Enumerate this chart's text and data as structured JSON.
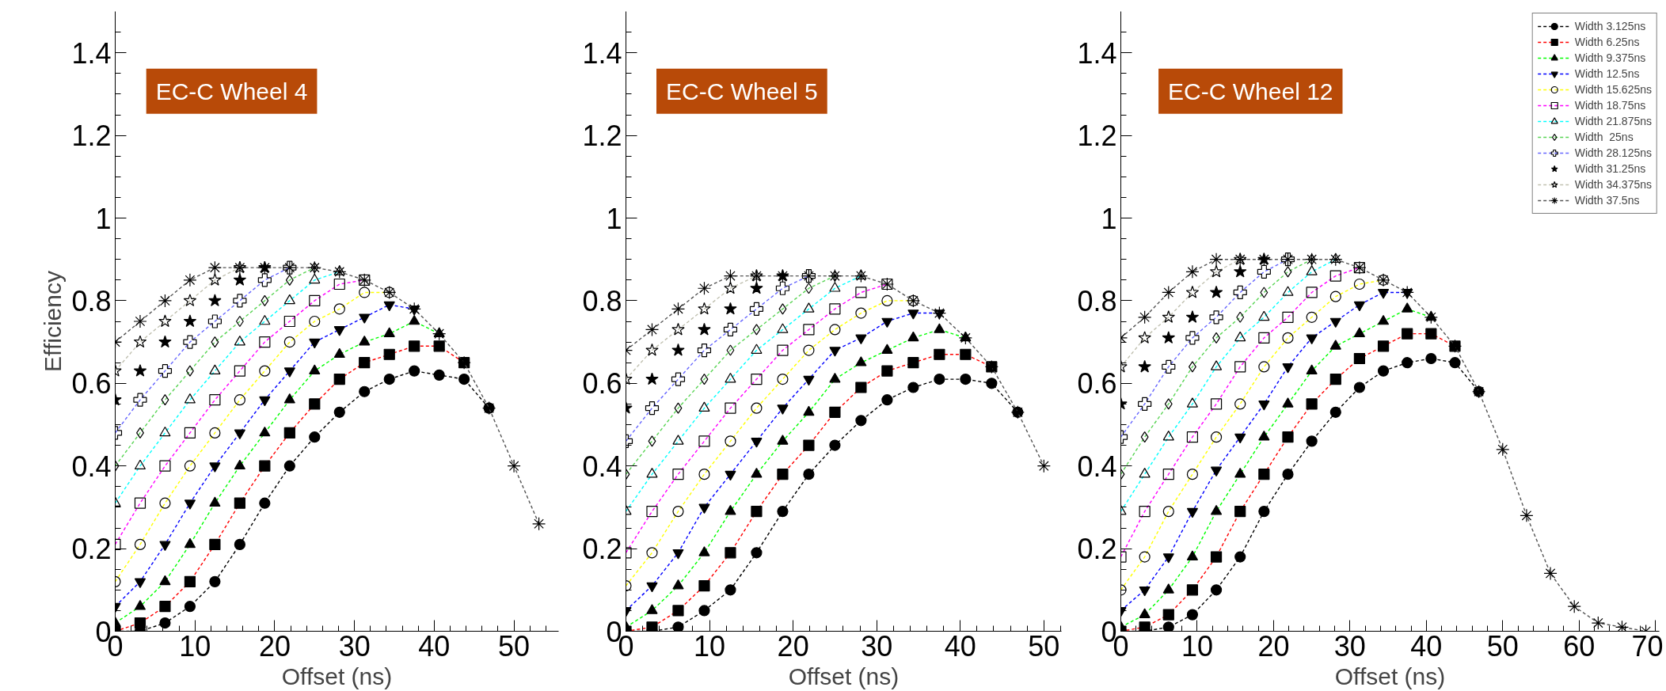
{
  "chart_data": [
    {
      "type": "line",
      "title": "EC-C Wheel 4",
      "xlabel": "Offset (ns)",
      "ylabel": "Efficiency",
      "line_style": "dashed",
      "xlim": [
        0,
        55.6
      ],
      "ylim": [
        0,
        1.5
      ],
      "xticks": [
        0,
        10,
        20,
        30,
        40,
        50
      ],
      "yticks": [
        0,
        0.2,
        0.4,
        0.6,
        0.8,
        1,
        1.2,
        1.4
      ],
      "x": [
        0,
        3.125,
        6.25,
        9.375,
        12.5,
        15.625,
        18.75,
        21.875,
        25,
        28.125,
        31.25,
        34.375,
        37.5,
        40.625,
        43.75,
        46.875,
        50,
        53.125
      ],
      "series": [
        {
          "color": "#000000",
          "marker": "circle",
          "values": [
            0,
            0,
            0.02,
            0.06,
            0.12,
            0.21,
            0.31,
            0.4,
            0.47,
            0.53,
            0.58,
            0.61,
            0.63,
            0.62,
            0.61,
            0.54,
            null,
            null
          ]
        },
        {
          "color": "#ff0000",
          "marker": "square",
          "values": [
            0,
            0.02,
            0.06,
            0.12,
            0.21,
            0.31,
            0.4,
            0.48,
            0.55,
            0.61,
            0.65,
            0.67,
            0.69,
            0.69,
            0.65,
            null,
            null,
            null
          ]
        },
        {
          "color": "#00ff00",
          "marker": "triangle",
          "values": [
            0.02,
            0.06,
            0.12,
            0.21,
            0.31,
            0.4,
            0.48,
            0.56,
            0.63,
            0.67,
            0.7,
            0.72,
            0.75,
            0.72,
            null,
            null,
            null,
            null
          ]
        },
        {
          "color": "#0000ff",
          "marker": "triangle_down",
          "values": [
            0.06,
            0.12,
            0.21,
            0.31,
            0.4,
            0.48,
            0.56,
            0.63,
            0.7,
            0.73,
            0.76,
            0.79,
            0.78,
            null,
            null,
            null,
            null,
            null
          ]
        },
        {
          "color": "#ffff00",
          "marker": "circle_open",
          "values": [
            0.12,
            0.21,
            0.31,
            0.4,
            0.48,
            0.56,
            0.63,
            0.7,
            0.75,
            0.78,
            0.82,
            0.82,
            null,
            null,
            null,
            null,
            null,
            null
          ]
        },
        {
          "color": "#ff00ff",
          "marker": "square_open",
          "values": [
            0.21,
            0.31,
            0.4,
            0.48,
            0.56,
            0.63,
            0.7,
            0.75,
            0.8,
            0.84,
            0.85,
            null,
            null,
            null,
            null,
            null,
            null,
            null
          ]
        },
        {
          "color": "#00ffff",
          "marker": "triangle_open",
          "values": [
            0.31,
            0.4,
            0.48,
            0.56,
            0.63,
            0.7,
            0.75,
            0.8,
            0.85,
            0.87,
            null,
            null,
            null,
            null,
            null,
            null,
            null,
            null
          ]
        },
        {
          "color": "#59d454",
          "marker": "diamond_open",
          "values": [
            0.4,
            0.48,
            0.56,
            0.63,
            0.7,
            0.75,
            0.8,
            0.85,
            0.88,
            null,
            null,
            null,
            null,
            null,
            null,
            null,
            null,
            null
          ]
        },
        {
          "color": "#6666ff",
          "marker": "cross_open",
          "values": [
            0.48,
            0.56,
            0.63,
            0.7,
            0.75,
            0.8,
            0.85,
            0.88,
            null,
            null,
            null,
            null,
            null,
            null,
            null,
            null,
            null,
            null
          ]
        },
        {
          "type": "scatter",
          "color": "#000000",
          "marker": "star",
          "values": [
            0.56,
            0.63,
            0.7,
            0.75,
            0.8,
            0.85,
            0.88,
            null,
            null,
            null,
            null,
            null,
            null,
            null,
            null,
            null,
            null,
            null
          ]
        },
        {
          "color": "#c0c0b0",
          "marker": "star_open",
          "values": [
            0.63,
            0.7,
            0.75,
            0.8,
            0.85,
            0.88,
            null,
            null,
            null,
            null,
            null,
            null,
            null,
            null,
            null,
            null,
            null,
            null
          ]
        },
        {
          "color": "#555555",
          "marker": "cross_asterisk",
          "values": [
            0.7,
            0.75,
            0.8,
            0.85,
            0.88,
            0.88,
            0.88,
            0.88,
            0.88,
            0.87,
            0.85,
            0.82,
            0.78,
            0.72,
            0.65,
            0.54,
            0.4,
            0.26
          ]
        }
      ]
    },
    {
      "type": "line",
      "title": "EC-C Wheel 5",
      "xlabel": "Offset (ns)",
      "line_style": "dashed",
      "xlim": [
        0,
        52.1
      ],
      "ylim": [
        0,
        1.5
      ],
      "xticks": [
        0,
        10,
        20,
        30,
        40,
        50
      ],
      "yticks": [
        0,
        0.2,
        0.4,
        0.6,
        0.8,
        1,
        1.2,
        1.4
      ],
      "x": [
        0,
        3.125,
        6.25,
        9.375,
        12.5,
        15.625,
        18.75,
        21.875,
        25,
        28.125,
        31.25,
        34.375,
        37.5,
        40.625,
        43.75,
        46.875,
        50
      ],
      "series": [
        {
          "color": "#000000",
          "marker": "circle",
          "values": [
            0,
            0,
            0.01,
            0.05,
            0.1,
            0.19,
            0.29,
            0.38,
            0.45,
            0.51,
            0.56,
            0.59,
            0.61,
            0.61,
            0.6,
            0.53,
            null
          ]
        },
        {
          "color": "#ff0000",
          "marker": "square",
          "values": [
            0,
            0.01,
            0.05,
            0.11,
            0.19,
            0.29,
            0.38,
            0.45,
            0.53,
            0.59,
            0.63,
            0.65,
            0.67,
            0.67,
            0.64,
            null,
            null
          ]
        },
        {
          "color": "#00ff00",
          "marker": "triangle",
          "values": [
            0.01,
            0.05,
            0.11,
            0.19,
            0.29,
            0.38,
            0.46,
            0.53,
            0.61,
            0.65,
            0.68,
            0.71,
            0.73,
            0.71,
            null,
            null,
            null
          ]
        },
        {
          "color": "#0000ff",
          "marker": "triangle_down",
          "values": [
            0.05,
            0.11,
            0.19,
            0.3,
            0.38,
            0.46,
            0.54,
            0.61,
            0.68,
            0.71,
            0.75,
            0.77,
            0.77,
            null,
            null,
            null,
            null
          ]
        },
        {
          "color": "#ffff00",
          "marker": "circle_open",
          "values": [
            0.11,
            0.19,
            0.29,
            0.38,
            0.46,
            0.54,
            0.61,
            0.68,
            0.73,
            0.77,
            0.8,
            0.8,
            null,
            null,
            null,
            null,
            null
          ]
        },
        {
          "color": "#ff00ff",
          "marker": "square_open",
          "values": [
            0.19,
            0.29,
            0.38,
            0.46,
            0.54,
            0.61,
            0.68,
            0.73,
            0.78,
            0.82,
            0.84,
            null,
            null,
            null,
            null,
            null,
            null
          ]
        },
        {
          "color": "#00ffff",
          "marker": "triangle_open",
          "values": [
            0.29,
            0.38,
            0.46,
            0.54,
            0.61,
            0.68,
            0.73,
            0.78,
            0.83,
            0.86,
            null,
            null,
            null,
            null,
            null,
            null,
            null
          ]
        },
        {
          "color": "#59d454",
          "marker": "diamond_open",
          "values": [
            0.38,
            0.46,
            0.54,
            0.61,
            0.68,
            0.73,
            0.78,
            0.83,
            0.86,
            null,
            null,
            null,
            null,
            null,
            null,
            null,
            null
          ]
        },
        {
          "color": "#6666ff",
          "marker": "cross_open",
          "values": [
            0.46,
            0.54,
            0.61,
            0.68,
            0.73,
            0.78,
            0.83,
            0.86,
            null,
            null,
            null,
            null,
            null,
            null,
            null,
            null,
            null
          ]
        },
        {
          "type": "scatter",
          "color": "#000000",
          "marker": "star",
          "values": [
            0.54,
            0.61,
            0.68,
            0.73,
            0.78,
            0.83,
            0.86,
            null,
            null,
            null,
            null,
            null,
            null,
            null,
            null,
            null,
            null
          ]
        },
        {
          "color": "#c0c0b0",
          "marker": "star_open",
          "values": [
            0.61,
            0.68,
            0.73,
            0.78,
            0.83,
            0.86,
            null,
            null,
            null,
            null,
            null,
            null,
            null,
            null,
            null,
            null,
            null
          ]
        },
        {
          "color": "#555555",
          "marker": "cross_asterisk",
          "values": [
            0.68,
            0.73,
            0.78,
            0.83,
            0.86,
            0.86,
            0.86,
            0.86,
            0.86,
            0.86,
            0.84,
            0.8,
            0.77,
            0.71,
            0.64,
            0.53,
            0.4
          ]
        }
      ]
    },
    {
      "type": "line",
      "title": "EC-C Wheel 12",
      "xlabel": "Offset (ns)",
      "line_style": "dashed",
      "legend": "top right",
      "xlim": [
        0,
        70.5
      ],
      "ylim": [
        0,
        1.5
      ],
      "xticks": [
        0,
        10,
        20,
        30,
        40,
        50,
        60,
        70
      ],
      "yticks": [
        0,
        0.2,
        0.4,
        0.6,
        0.8,
        1,
        1.2,
        1.4
      ],
      "x": [
        0,
        3.125,
        6.25,
        9.375,
        12.5,
        15.625,
        18.75,
        21.875,
        25,
        28.125,
        31.25,
        34.375,
        37.5,
        40.625,
        43.75,
        46.875,
        50,
        53.125,
        56.25,
        59.375,
        62.5,
        65.625,
        68.75
      ],
      "series": [
        {
          "name": "Width 3.125ns",
          "color": "#000000",
          "marker": "circle",
          "values": [
            0,
            0,
            0.01,
            0.04,
            0.1,
            0.18,
            0.29,
            0.38,
            0.46,
            0.53,
            0.59,
            0.63,
            0.65,
            0.66,
            0.65,
            0.58,
            null,
            null,
            null,
            null,
            null,
            null,
            null
          ]
        },
        {
          "name": "Width 6.25ns",
          "color": "#ff0000",
          "marker": "square",
          "values": [
            0,
            0.01,
            0.04,
            0.1,
            0.18,
            0.29,
            0.38,
            0.47,
            0.55,
            0.61,
            0.66,
            0.69,
            0.72,
            0.72,
            0.69,
            null,
            null,
            null,
            null,
            null,
            null,
            null,
            null
          ]
        },
        {
          "name": "Width 9.375ns",
          "color": "#00ff00",
          "marker": "triangle",
          "values": [
            0.01,
            0.04,
            0.1,
            0.18,
            0.29,
            0.38,
            0.47,
            0.55,
            0.63,
            0.69,
            0.72,
            0.75,
            0.78,
            0.76,
            null,
            null,
            null,
            null,
            null,
            null,
            null,
            null,
            null
          ]
        },
        {
          "name": "Width 12.5ns",
          "color": "#0000ff",
          "marker": "triangle_down",
          "values": [
            0.05,
            0.1,
            0.18,
            0.29,
            0.39,
            0.47,
            0.55,
            0.64,
            0.71,
            0.75,
            0.79,
            0.82,
            0.82,
            null,
            null,
            null,
            null,
            null,
            null,
            null,
            null,
            null,
            null
          ]
        },
        {
          "name": "Width 15.625ns",
          "color": "#ffff00",
          "marker": "circle_open",
          "values": [
            0.1,
            0.18,
            0.29,
            0.38,
            0.47,
            0.55,
            0.64,
            0.71,
            0.76,
            0.81,
            0.84,
            0.85,
            null,
            null,
            null,
            null,
            null,
            null,
            null,
            null,
            null,
            null,
            null
          ]
        },
        {
          "name": "Width 18.75ns",
          "color": "#ff00ff",
          "marker": "square_open",
          "values": [
            0.18,
            0.29,
            0.38,
            0.47,
            0.55,
            0.64,
            0.71,
            0.76,
            0.82,
            0.86,
            0.88,
            null,
            null,
            null,
            null,
            null,
            null,
            null,
            null,
            null,
            null,
            null,
            null
          ]
        },
        {
          "name": "Width 21.875ns",
          "color": "#00ffff",
          "marker": "triangle_open",
          "values": [
            0.29,
            0.38,
            0.47,
            0.55,
            0.64,
            0.71,
            0.76,
            0.82,
            0.87,
            0.9,
            null,
            null,
            null,
            null,
            null,
            null,
            null,
            null,
            null,
            null,
            null,
            null,
            null
          ]
        },
        {
          "name": "Width  25ns",
          "color": "#59d454",
          "marker": "diamond_open",
          "values": [
            0.38,
            0.47,
            0.55,
            0.64,
            0.71,
            0.76,
            0.82,
            0.87,
            0.9,
            null,
            null,
            null,
            null,
            null,
            null,
            null,
            null,
            null,
            null,
            null,
            null,
            null,
            null
          ]
        },
        {
          "name": "Width 28.125ns",
          "color": "#6666ff",
          "marker": "cross_open",
          "values": [
            0.47,
            0.55,
            0.64,
            0.71,
            0.76,
            0.82,
            0.87,
            0.9,
            null,
            null,
            null,
            null,
            null,
            null,
            null,
            null,
            null,
            null,
            null,
            null,
            null,
            null,
            null
          ]
        },
        {
          "name": "Width 31.25ns",
          "type": "scatter",
          "color": "#000000",
          "marker": "star",
          "values": [
            0.55,
            0.64,
            0.71,
            0.76,
            0.82,
            0.87,
            0.9,
            null,
            null,
            null,
            null,
            null,
            null,
            null,
            null,
            null,
            null,
            null,
            null,
            null,
            null,
            null,
            null
          ]
        },
        {
          "name": "Width 34.375ns",
          "color": "#c0c0b0",
          "marker": "star_open",
          "values": [
            0.64,
            0.71,
            0.76,
            0.82,
            0.87,
            0.9,
            null,
            null,
            null,
            null,
            null,
            null,
            null,
            null,
            null,
            null,
            null,
            null,
            null,
            null,
            null,
            null,
            null
          ]
        },
        {
          "name": "Width 37.5ns",
          "color": "#555555",
          "marker": "cross_asterisk",
          "values": [
            0.71,
            0.76,
            0.82,
            0.87,
            0.9,
            0.9,
            0.9,
            0.9,
            0.9,
            0.9,
            0.88,
            0.85,
            0.82,
            0.76,
            0.69,
            0.58,
            0.44,
            0.28,
            0.14,
            0.06,
            0.02,
            0.01,
            0
          ]
        }
      ]
    }
  ]
}
